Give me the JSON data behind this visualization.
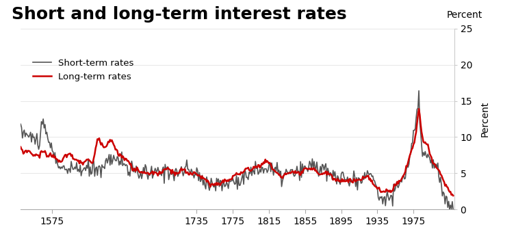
{
  "title": "Short and long-term interest rates",
  "ylabel": "Percent",
  "short_term_color": "#555555",
  "long_term_color": "#cc0000",
  "short_term_label": "Short-term rates",
  "long_term_label": "Long-term rates",
  "xlim": [
    1540,
    2020
  ],
  "ylim": [
    0,
    25
  ],
  "yticks": [
    0,
    5,
    10,
    15,
    20,
    25
  ],
  "xticks": [
    1575,
    1735,
    1775,
    1815,
    1855,
    1895,
    1935,
    1975
  ],
  "background_color": "#ffffff",
  "title_fontsize": 18,
  "axis_fontsize": 10,
  "short_term_linewidth": 1.2,
  "long_term_linewidth": 1.8
}
